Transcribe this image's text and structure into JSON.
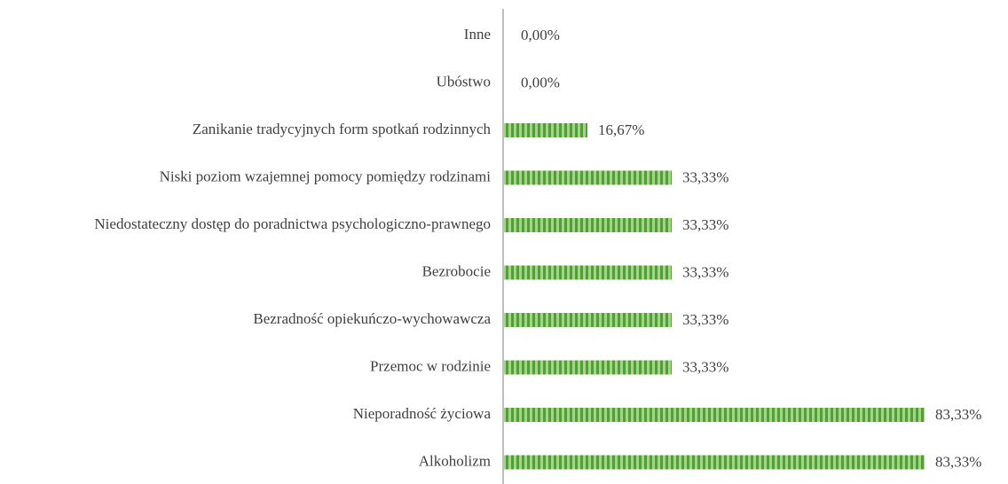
{
  "chart_data": {
    "type": "bar",
    "orientation": "horizontal",
    "categories": [
      "Inne",
      "Ubóstwo",
      "Zanikanie tradycyjnych form spotkań rodzinnych",
      "Niski poziom wzajemnej pomocy pomiędzy rodzinami",
      "Niedostateczny dostęp do poradnictwa psychologiczno-prawnego",
      "Bezrobocie",
      "Bezradność opiekuńczo-wychowawcza",
      "Przemoc w rodzinie",
      "Nieporadność życiowa",
      "Alkoholizm"
    ],
    "values": [
      0,
      0,
      16.67,
      33.33,
      33.33,
      33.33,
      33.33,
      33.33,
      83.33,
      83.33
    ],
    "value_labels": [
      "0,00%",
      "0,00%",
      "16,67%",
      "33,33%",
      "33,33%",
      "33,33%",
      "33,33%",
      "33,33%",
      "83,33%",
      "83,33%"
    ],
    "color": "#70ad47",
    "xlim": [
      0,
      100
    ]
  }
}
